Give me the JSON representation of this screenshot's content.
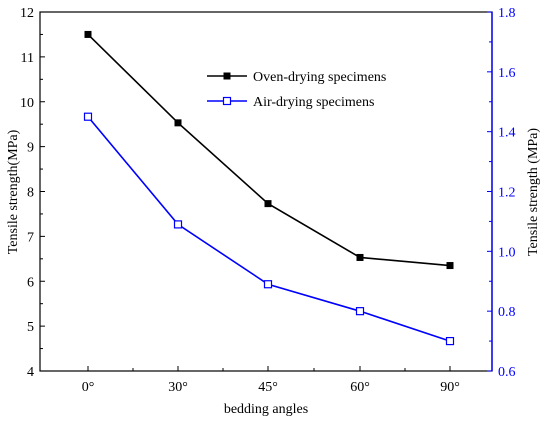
{
  "chart_data": {
    "type": "line",
    "title": "",
    "xlabel": "bedding angles",
    "ylabel_left": "Tensile strength(MPa)",
    "ylabel_right": "Tensile strength (MPa)",
    "categories": [
      "0°",
      "30°",
      "45°",
      "60°",
      "90°"
    ],
    "y_left": {
      "min": 4,
      "max": 12,
      "ticks": [
        "4",
        "5",
        "6",
        "7",
        "8",
        "9",
        "10",
        "11",
        "12"
      ]
    },
    "y_right": {
      "min": 0.6,
      "max": 1.8,
      "ticks": [
        "0.6",
        "0.8",
        "1.0",
        "1.2",
        "1.4",
        "1.6",
        "1.8"
      ]
    },
    "grid": false,
    "legend_position": "top-right",
    "series": [
      {
        "name": "Oven-drying specimens",
        "axis": "left",
        "color": "#000000",
        "marker": "filled-square",
        "values": [
          11.5,
          9.53,
          7.73,
          6.53,
          6.35
        ]
      },
      {
        "name": "Air-drying specimens",
        "axis": "right",
        "color": "#0000ff",
        "marker": "open-square",
        "values": [
          1.45,
          1.09,
          0.89,
          0.8,
          0.7
        ]
      }
    ]
  }
}
